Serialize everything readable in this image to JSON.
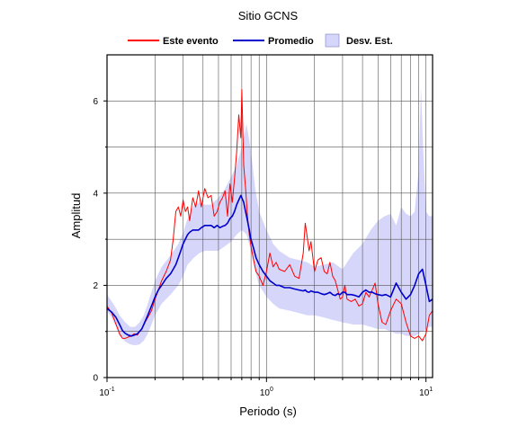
{
  "chart_data": {
    "type": "line",
    "title": "Sitio GCNS",
    "xlabel": "Periodo (s)",
    "ylabel": "Amplitud",
    "x_scale": "log",
    "xlim": [
      0.1,
      11
    ],
    "ylim": [
      0,
      7
    ],
    "yticks": [
      0,
      2,
      4,
      6
    ],
    "xticks": [
      {
        "value": 0.1,
        "base": "10",
        "exp": "-1"
      },
      {
        "value": 1,
        "base": "10",
        "exp": "0"
      },
      {
        "value": 10,
        "base": "10",
        "exp": "1"
      }
    ],
    "grid": true,
    "legend_position": "top",
    "legend": {
      "event": "Este evento",
      "mean": "Promedio",
      "band": "Desv. Est."
    },
    "colors": {
      "event": "#ff0000",
      "mean": "#0000cc",
      "band": "#d6d6fa"
    },
    "series": [
      {
        "name": "Este evento",
        "x": [
          0.1,
          0.107,
          0.114,
          0.12,
          0.125,
          0.13,
          0.136,
          0.142,
          0.148,
          0.155,
          0.16,
          0.165,
          0.17,
          0.18,
          0.19,
          0.2,
          0.21,
          0.22,
          0.235,
          0.25,
          0.26,
          0.27,
          0.28,
          0.29,
          0.3,
          0.31,
          0.32,
          0.33,
          0.345,
          0.36,
          0.375,
          0.39,
          0.41,
          0.43,
          0.45,
          0.47,
          0.49,
          0.51,
          0.53,
          0.55,
          0.57,
          0.59,
          0.61,
          0.63,
          0.65,
          0.67,
          0.69,
          0.7,
          0.72,
          0.74,
          0.76,
          0.78,
          0.8,
          0.83,
          0.86,
          0.9,
          0.95,
          1.0,
          1.05,
          1.1,
          1.15,
          1.2,
          1.3,
          1.4,
          1.5,
          1.6,
          1.7,
          1.75,
          1.8,
          1.85,
          1.9,
          2.0,
          2.1,
          2.2,
          2.3,
          2.4,
          2.5,
          2.6,
          2.7,
          2.8,
          2.9,
          3.0,
          3.1,
          3.2,
          3.4,
          3.6,
          3.8,
          4.0,
          4.2,
          4.4,
          4.6,
          4.8,
          5.0,
          5.3,
          5.6,
          6.0,
          6.5,
          7.0,
          7.5,
          8.0,
          8.5,
          9.0,
          9.5,
          10.0,
          10.5,
          11.0
        ],
        "values": [
          1.55,
          1.4,
          1.15,
          0.95,
          0.85,
          0.85,
          0.88,
          0.9,
          0.95,
          0.92,
          1.0,
          1.05,
          1.15,
          1.3,
          1.45,
          1.7,
          1.9,
          2.1,
          2.3,
          2.55,
          3.0,
          3.6,
          3.7,
          3.5,
          3.85,
          3.6,
          3.7,
          3.4,
          3.9,
          3.7,
          4.05,
          3.7,
          4.1,
          3.9,
          3.95,
          3.5,
          3.6,
          3.8,
          3.9,
          4.05,
          3.5,
          4.2,
          3.8,
          4.3,
          4.9,
          5.7,
          5.2,
          6.25,
          4.6,
          4.1,
          3.5,
          3.1,
          2.85,
          2.55,
          2.3,
          2.2,
          2.0,
          2.3,
          2.7,
          2.4,
          2.5,
          2.35,
          2.3,
          2.45,
          2.2,
          2.15,
          2.7,
          3.35,
          3.05,
          2.75,
          2.95,
          2.3,
          2.55,
          2.6,
          2.3,
          2.25,
          2.5,
          2.2,
          2.1,
          1.9,
          1.7,
          1.75,
          2.0,
          1.7,
          1.65,
          1.7,
          1.55,
          1.6,
          1.85,
          1.75,
          1.9,
          2.05,
          1.6,
          1.2,
          1.15,
          1.45,
          1.7,
          1.6,
          1.2,
          0.9,
          0.85,
          0.9,
          0.8,
          0.95,
          1.35,
          1.45
        ]
      },
      {
        "name": "Promedio",
        "x": [
          0.1,
          0.107,
          0.114,
          0.12,
          0.125,
          0.13,
          0.136,
          0.142,
          0.148,
          0.155,
          0.16,
          0.165,
          0.17,
          0.18,
          0.19,
          0.2,
          0.21,
          0.22,
          0.235,
          0.25,
          0.26,
          0.27,
          0.28,
          0.29,
          0.3,
          0.31,
          0.32,
          0.33,
          0.345,
          0.36,
          0.375,
          0.39,
          0.41,
          0.43,
          0.45,
          0.47,
          0.49,
          0.51,
          0.53,
          0.55,
          0.57,
          0.59,
          0.61,
          0.63,
          0.65,
          0.67,
          0.69,
          0.7,
          0.72,
          0.74,
          0.76,
          0.78,
          0.8,
          0.83,
          0.86,
          0.9,
          0.95,
          1.0,
          1.05,
          1.1,
          1.15,
          1.2,
          1.3,
          1.4,
          1.5,
          1.6,
          1.7,
          1.75,
          1.8,
          1.85,
          1.9,
          2.0,
          2.1,
          2.2,
          2.3,
          2.4,
          2.5,
          2.6,
          2.7,
          2.8,
          2.9,
          3.0,
          3.1,
          3.2,
          3.4,
          3.6,
          3.8,
          4.0,
          4.2,
          4.4,
          4.6,
          4.8,
          5.0,
          5.3,
          5.6,
          6.0,
          6.5,
          7.0,
          7.5,
          8.0,
          8.5,
          9.0,
          9.5,
          10.0,
          10.5,
          11.0
        ],
        "values": [
          1.5,
          1.42,
          1.3,
          1.15,
          1.02,
          0.96,
          0.92,
          0.9,
          0.92,
          0.95,
          1.0,
          1.05,
          1.15,
          1.35,
          1.55,
          1.75,
          1.9,
          2.0,
          2.15,
          2.25,
          2.35,
          2.45,
          2.6,
          2.75,
          2.9,
          3.0,
          3.1,
          3.15,
          3.2,
          3.2,
          3.2,
          3.25,
          3.3,
          3.3,
          3.3,
          3.25,
          3.3,
          3.25,
          3.28,
          3.3,
          3.35,
          3.45,
          3.5,
          3.6,
          3.75,
          3.85,
          3.95,
          3.9,
          3.8,
          3.6,
          3.4,
          3.2,
          3.0,
          2.8,
          2.6,
          2.45,
          2.3,
          2.2,
          2.1,
          2.05,
          2.0,
          2.0,
          1.95,
          1.95,
          1.92,
          1.9,
          1.88,
          1.9,
          1.86,
          1.85,
          1.88,
          1.85,
          1.85,
          1.82,
          1.8,
          1.82,
          1.85,
          1.8,
          1.78,
          1.82,
          1.8,
          1.85,
          1.85,
          1.8,
          1.8,
          1.78,
          1.75,
          1.85,
          1.9,
          1.85,
          1.85,
          1.82,
          1.8,
          1.78,
          1.8,
          1.75,
          2.05,
          1.85,
          1.7,
          1.8,
          2.0,
          2.25,
          2.35,
          2.0,
          1.65,
          1.7
        ]
      }
    ],
    "band": {
      "name": "Desv. Est.",
      "x": [
        0.1,
        0.107,
        0.114,
        0.12,
        0.13,
        0.14,
        0.15,
        0.16,
        0.17,
        0.18,
        0.19,
        0.2,
        0.22,
        0.25,
        0.28,
        0.3,
        0.32,
        0.35,
        0.38,
        0.41,
        0.45,
        0.5,
        0.55,
        0.6,
        0.65,
        0.7,
        0.75,
        0.8,
        0.85,
        0.9,
        1.0,
        1.1,
        1.2,
        1.4,
        1.6,
        1.8,
        2.0,
        2.3,
        2.6,
        3.0,
        3.5,
        4.0,
        4.5,
        5.0,
        5.5,
        6.0,
        6.5,
        7.0,
        7.5,
        8.0,
        8.5,
        9.0,
        9.3,
        9.6,
        10.0,
        10.5,
        11.0
      ],
      "upper": [
        1.8,
        1.65,
        1.5,
        1.35,
        1.2,
        1.1,
        1.1,
        1.2,
        1.35,
        1.6,
        1.85,
        2.1,
        2.4,
        2.65,
        2.9,
        3.15,
        3.45,
        3.75,
        3.8,
        3.75,
        3.75,
        3.9,
        4.1,
        4.35,
        4.6,
        5.0,
        5.5,
        4.9,
        4.1,
        3.6,
        3.2,
        2.9,
        2.75,
        2.6,
        2.55,
        2.5,
        2.4,
        2.45,
        2.5,
        2.35,
        2.7,
        2.9,
        3.2,
        3.4,
        3.5,
        3.55,
        3.3,
        3.7,
        3.55,
        3.5,
        3.6,
        4.5,
        6.3,
        5.0,
        3.6,
        3.5,
        3.5
      ],
      "lower": [
        1.45,
        1.3,
        1.1,
        0.9,
        0.78,
        0.72,
        0.7,
        0.72,
        0.8,
        0.95,
        1.15,
        1.35,
        1.6,
        1.8,
        2.0,
        2.2,
        2.45,
        2.6,
        2.7,
        2.75,
        2.75,
        2.75,
        2.85,
        2.95,
        3.1,
        3.2,
        3.1,
        2.75,
        2.3,
        2.0,
        1.75,
        1.6,
        1.5,
        1.45,
        1.4,
        1.35,
        1.35,
        1.3,
        1.25,
        1.2,
        1.15,
        1.15,
        1.1,
        1.05,
        1.05,
        1.0,
        0.95,
        0.95,
        0.9,
        0.9,
        0.9,
        0.95,
        1.0,
        1.0,
        1.05,
        1.1,
        1.1
      ]
    }
  }
}
